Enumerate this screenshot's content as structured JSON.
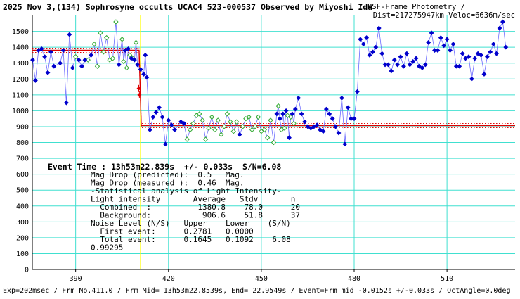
{
  "chart_data": {
    "type": "scatter",
    "title": "2025 Nov 3,(134) Sophrosyne occults UCAC4 523-000537 Observed by Miyoshi Ida",
    "subtitle_line1": "/ PSF-Frame Photometry /",
    "subtitle_line2": "Dist=217275947km Veloc=6636m/sec",
    "xlim": [
      376,
      532
    ],
    "ylim": [
      0,
      1600
    ],
    "x_ticks": [
      390,
      420,
      450,
      480,
      510
    ],
    "y_ticks": [
      0,
      100,
      200,
      300,
      400,
      500,
      600,
      700,
      800,
      900,
      1000,
      1100,
      1200,
      1300,
      1400,
      1500
    ],
    "grid": true,
    "event_line_x": 411,
    "model_levels": {
      "upper": 1380.8,
      "lower": 906.6,
      "event_start": 410.5,
      "event_end": 411.2
    },
    "event_markers": [
      {
        "x": 410.4,
        "y": 1140
      },
      {
        "x": 410.6,
        "y": 1100
      }
    ],
    "colors": {
      "blue": "#0000cc",
      "green": "#33aa33",
      "grid": "#40e0d0",
      "red": "#dd0000",
      "event_line": "#ffff00",
      "connect": "#6a6aff"
    },
    "series_blue": [
      [
        376.1,
        1320
      ],
      [
        377.0,
        1190
      ],
      [
        378.0,
        1380
      ],
      [
        379.0,
        1390
      ],
      [
        380.0,
        1340
      ],
      [
        381.0,
        1240
      ],
      [
        382.0,
        1370
      ],
      [
        383.0,
        1280
      ],
      [
        385.0,
        1300
      ],
      [
        386.0,
        1380
      ],
      [
        387.0,
        1050
      ],
      [
        388.0,
        1480
      ],
      [
        389.0,
        1270
      ],
      [
        391.0,
        1320
      ],
      [
        392.0,
        1280
      ],
      [
        393.0,
        1320
      ],
      [
        395.0,
        1350
      ],
      [
        404.0,
        1290
      ],
      [
        406.0,
        1380
      ],
      [
        407.0,
        1390
      ],
      [
        408.0,
        1330
      ],
      [
        409.0,
        1320
      ],
      [
        410.0,
        1290
      ],
      [
        411.0,
        1260
      ],
      [
        412.0,
        1230
      ],
      [
        412.5,
        1350
      ],
      [
        413.0,
        1210
      ],
      [
        414.0,
        880
      ],
      [
        415.0,
        960
      ],
      [
        416.0,
        990
      ],
      [
        417.0,
        1020
      ],
      [
        418.0,
        960
      ],
      [
        419.0,
        790
      ],
      [
        420.0,
        940
      ],
      [
        421.0,
        910
      ],
      [
        422.0,
        880
      ],
      [
        424.0,
        930
      ],
      [
        425.0,
        920
      ],
      [
        443.0,
        850
      ],
      [
        455.0,
        980
      ],
      [
        456.0,
        950
      ],
      [
        457.0,
        980
      ],
      [
        458.0,
        1000
      ],
      [
        459.0,
        830
      ],
      [
        460.0,
        980
      ],
      [
        461.0,
        1010
      ],
      [
        462.0,
        1080
      ],
      [
        463.0,
        980
      ],
      [
        464.0,
        930
      ],
      [
        465.0,
        900
      ],
      [
        466.0,
        890
      ],
      [
        467.0,
        900
      ],
      [
        468.0,
        910
      ],
      [
        469.0,
        880
      ],
      [
        470.0,
        870
      ],
      [
        471.0,
        1010
      ],
      [
        472.0,
        980
      ],
      [
        473.0,
        950
      ],
      [
        474.0,
        900
      ],
      [
        475.0,
        860
      ],
      [
        476.0,
        1080
      ],
      [
        477.0,
        790
      ],
      [
        478.0,
        1020
      ],
      [
        479.0,
        950
      ],
      [
        480.0,
        950
      ],
      [
        481.0,
        1120
      ],
      [
        482.0,
        1450
      ],
      [
        483.0,
        1420
      ],
      [
        484.0,
        1460
      ],
      [
        485.0,
        1350
      ],
      [
        486.0,
        1370
      ],
      [
        487.0,
        1400
      ],
      [
        488.0,
        1520
      ],
      [
        489.0,
        1360
      ],
      [
        490.0,
        1290
      ],
      [
        491.0,
        1290
      ],
      [
        492.0,
        1250
      ],
      [
        493.0,
        1320
      ],
      [
        494.0,
        1290
      ],
      [
        495.0,
        1340
      ],
      [
        496.0,
        1280
      ],
      [
        497.0,
        1360
      ],
      [
        498.0,
        1290
      ],
      [
        499.0,
        1310
      ],
      [
        500.0,
        1330
      ],
      [
        501.0,
        1280
      ],
      [
        502.0,
        1270
      ],
      [
        503.0,
        1290
      ],
      [
        504.0,
        1430
      ],
      [
        505.0,
        1490
      ],
      [
        506.0,
        1380
      ],
      [
        507.0,
        1380
      ],
      [
        508.0,
        1460
      ],
      [
        509.0,
        1410
      ],
      [
        510.0,
        1450
      ],
      [
        511.0,
        1380
      ],
      [
        512.0,
        1420
      ],
      [
        513.0,
        1280
      ],
      [
        514.0,
        1280
      ],
      [
        515.0,
        1360
      ],
      [
        516.0,
        1330
      ],
      [
        517.0,
        1340
      ],
      [
        518.0,
        1200
      ],
      [
        519.0,
        1330
      ],
      [
        520.0,
        1360
      ],
      [
        521.0,
        1350
      ],
      [
        522.0,
        1230
      ],
      [
        523.0,
        1340
      ],
      [
        524.0,
        1370
      ],
      [
        525.0,
        1420
      ],
      [
        526.0,
        1360
      ],
      [
        527.0,
        1520
      ],
      [
        528.0,
        1560
      ],
      [
        529.0,
        1400
      ]
    ],
    "series_green": [
      [
        390.0,
        1340
      ],
      [
        394.0,
        1320
      ],
      [
        396.0,
        1420
      ],
      [
        397.0,
        1280
      ],
      [
        398.0,
        1490
      ],
      [
        399.0,
        1370
      ],
      [
        400.0,
        1460
      ],
      [
        401.0,
        1320
      ],
      [
        402.0,
        1330
      ],
      [
        403.0,
        1560
      ],
      [
        405.0,
        1450
      ],
      [
        405.5,
        1310
      ],
      [
        406.5,
        1270
      ],
      [
        407.5,
        1350
      ],
      [
        408.5,
        1330
      ],
      [
        409.5,
        1430
      ],
      [
        426.0,
        820
      ],
      [
        427.0,
        880
      ],
      [
        428.0,
        920
      ],
      [
        429.0,
        970
      ],
      [
        430.0,
        980
      ],
      [
        431.0,
        940
      ],
      [
        432.0,
        820
      ],
      [
        433.0,
        890
      ],
      [
        434.0,
        960
      ],
      [
        435.0,
        880
      ],
      [
        436.0,
        940
      ],
      [
        437.0,
        850
      ],
      [
        438.0,
        900
      ],
      [
        439.0,
        980
      ],
      [
        440.0,
        930
      ],
      [
        441.0,
        870
      ],
      [
        442.0,
        930
      ],
      [
        444.0,
        900
      ],
      [
        445.0,
        950
      ],
      [
        446.0,
        960
      ],
      [
        447.0,
        880
      ],
      [
        448.0,
        900
      ],
      [
        449.0,
        960
      ],
      [
        450.0,
        870
      ],
      [
        451.0,
        880
      ],
      [
        452.0,
        830
      ],
      [
        453.0,
        940
      ],
      [
        454.0,
        800
      ],
      [
        455.5,
        1030
      ],
      [
        456.5,
        880
      ],
      [
        457.5,
        890
      ],
      [
        458.5,
        970
      ],
      [
        459.5,
        960
      ],
      [
        460.5,
        920
      ]
    ],
    "event_info": {
      "label": "Event Time : 13h53m22.839s  +/- 0.033s  S/N=6.08",
      "lines": [
        "Mag Drop (predicted):  0.5   Mag.",
        "Mag Drop (measured ):  0.46  Mag.",
        "-Statistical analysis of Light Intensity-",
        "Light intensity       Average   Stdv       n",
        "  Combined  :          1380.8    78.0      20",
        "  Background:           906.6    51.8      37",
        "Noise Level (N/S)   Upper    Lower    (S/N)",
        "  First event:      0.2781   0.0000",
        "  Total event:      0.1645   0.1092    6.08",
        "0.99295"
      ]
    },
    "footer": "Exp=202msec / Frm No.411.0 / Frm Mid= 13h53m22.8539s,  End= 22.9549s / Event=Frm mid -0.0152s +/-0.033s / OctAngle=0.0deg"
  }
}
